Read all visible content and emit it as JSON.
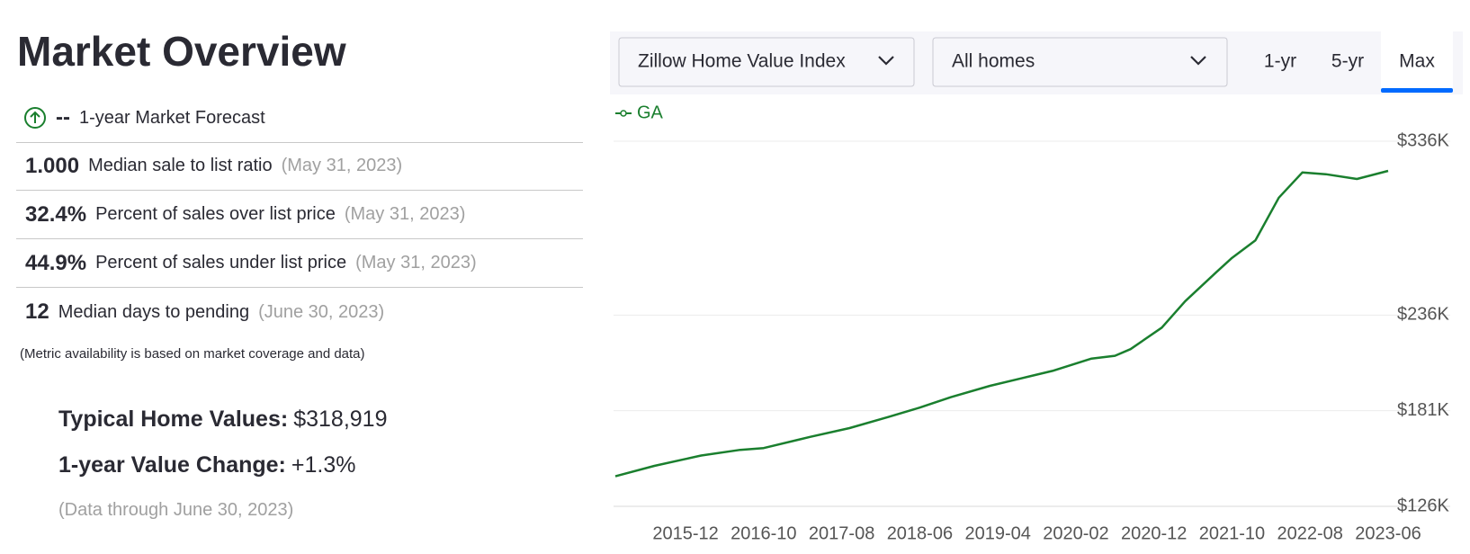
{
  "header": {
    "title": "Market Overview"
  },
  "forecast": {
    "value": "--",
    "label": "1-year Market Forecast"
  },
  "metrics": [
    {
      "value": "1.000",
      "label": "Median sale to list ratio",
      "date": "(May 31, 2023)"
    },
    {
      "value": "32.4%",
      "label": "Percent of sales over list price",
      "date": "(May 31, 2023)"
    },
    {
      "value": "44.9%",
      "label": "Percent of sales under list price",
      "date": "(May 31, 2023)"
    },
    {
      "value": "12",
      "label": "Median days to pending",
      "date": "(June 30, 2023)"
    }
  ],
  "note": "(Metric availability is based on market coverage and data)",
  "summary": {
    "typical_label": "Typical Home Values:",
    "typical_value": "$318,919",
    "change_label": "1-year Value Change:",
    "change_value": "+1.3%",
    "data_through": "(Data through June 30, 2023)"
  },
  "controls": {
    "index": "Zillow Home Value Index",
    "home_type": "All homes",
    "ranges": [
      "1-yr",
      "5-yr",
      "Max"
    ],
    "active_range": 2
  },
  "chart_data": {
    "type": "line",
    "x": [
      "2015-03",
      "2015-08",
      "2016-02",
      "2016-07",
      "2016-10",
      "2017-04",
      "2017-09",
      "2018-02",
      "2018-06",
      "2018-10",
      "2019-03",
      "2019-07",
      "2019-11",
      "2020-04",
      "2020-07",
      "2020-09",
      "2021-01",
      "2021-04",
      "2021-08",
      "2021-10",
      "2022-01",
      "2022-04",
      "2022-07",
      "2022-10",
      "2023-02",
      "2023-06"
    ],
    "series": [
      {
        "name": "GA",
        "color": "#1a7f2e",
        "values": [
          143300,
          149300,
          155200,
          158500,
          159500,
          166000,
          171000,
          177400,
          182800,
          188800,
          195300,
          199600,
          203900,
          211000,
          212600,
          216400,
          228800,
          244000,
          260700,
          268900,
          279000,
          303500,
          318000,
          317000,
          314300,
          318919
        ]
      }
    ],
    "xlim": [
      "2015-03",
      "2023-06"
    ],
    "xticks": [
      "2015-12",
      "2016-10",
      "2017-08",
      "2018-06",
      "2019-04",
      "2020-02",
      "2020-12",
      "2021-10",
      "2022-08",
      "2023-06"
    ],
    "ylim": [
      126000,
      336000
    ],
    "yticks": [
      {
        "value": 126000,
        "label": "$126K"
      },
      {
        "value": 181000,
        "label": "$181K"
      },
      {
        "value": 236000,
        "label": "$236K"
      },
      {
        "value": 336000,
        "label": "$336K"
      }
    ],
    "grid": true
  }
}
